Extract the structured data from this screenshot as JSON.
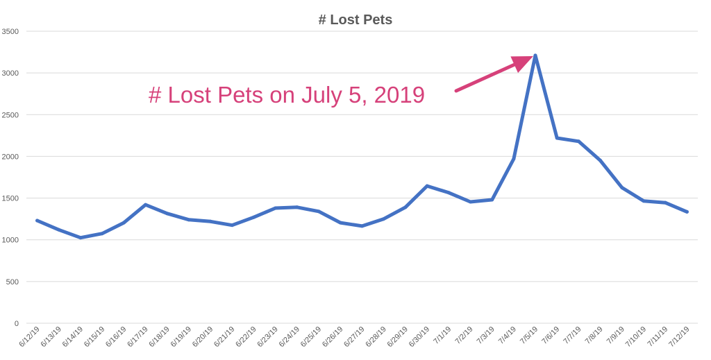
{
  "chart_data": {
    "type": "line",
    "title": "# Lost Pets",
    "xlabel": "",
    "ylabel": "",
    "ylim": [
      0,
      3500
    ],
    "yticks": [
      0,
      500,
      1000,
      1500,
      2000,
      2500,
      3000,
      3500
    ],
    "grid": "horizontal",
    "categories": [
      "6/12/19",
      "6/13/19",
      "6/14/19",
      "6/15/19",
      "6/16/19",
      "6/17/19",
      "6/18/19",
      "6/19/19",
      "6/20/19",
      "6/21/19",
      "6/22/19",
      "6/23/19",
      "6/24/19",
      "6/25/19",
      "6/26/19",
      "6/27/19",
      "6/28/19",
      "6/29/19",
      "6/30/19",
      "7/1/19",
      "7/2/19",
      "7/3/19",
      "7/4/19",
      "7/5/19",
      "7/6/19",
      "7/7/19",
      "7/8/19",
      "7/9/19",
      "7/10/19",
      "7/11/19",
      "7/12/19"
    ],
    "series": [
      {
        "values": [
          1230,
          1120,
          1025,
          1075,
          1205,
          1420,
          1315,
          1240,
          1220,
          1175,
          1270,
          1380,
          1390,
          1340,
          1205,
          1165,
          1250,
          1390,
          1645,
          1565,
          1455,
          1480,
          1970,
          3210,
          2220,
          2180,
          1950,
          1625,
          1465,
          1445,
          1335
        ]
      }
    ],
    "annotation": {
      "text": "# Lost Pets on July 5, 2019",
      "target_category": "7/5/19"
    },
    "colors": {
      "line": "#4472c4",
      "annotation": "#d6417a",
      "grid": "#d9d9d9",
      "text": "#595959"
    }
  }
}
